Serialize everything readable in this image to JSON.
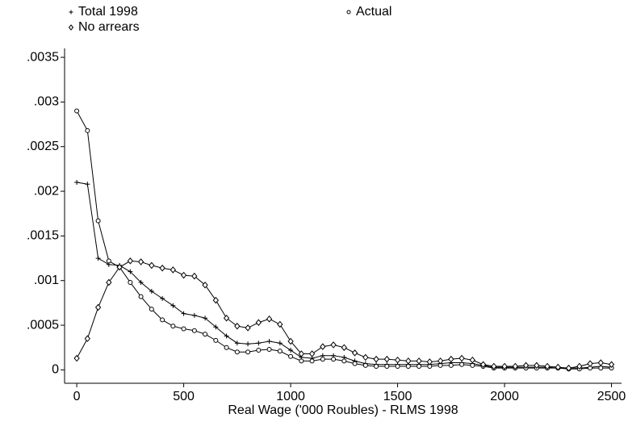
{
  "chart_data": {
    "type": "line",
    "xlabel": "Real Wage ('000 Roubles) - RLMS 1998",
    "x": [
      0,
      50,
      100,
      150,
      200,
      250,
      300,
      350,
      400,
      450,
      500,
      550,
      600,
      650,
      700,
      750,
      800,
      850,
      900,
      950,
      1000,
      1050,
      1100,
      1150,
      1200,
      1250,
      1300,
      1350,
      1400,
      1450,
      1500,
      1550,
      1600,
      1650,
      1700,
      1750,
      1800,
      1850,
      1900,
      1950,
      2000,
      2050,
      2100,
      2150,
      2200,
      2250,
      2300,
      2350,
      2400,
      2450,
      2500
    ],
    "series": [
      {
        "name": "Total 1998",
        "color": "#000000",
        "marker": "plus",
        "values": [
          0.0021,
          0.00208,
          0.00125,
          0.00118,
          0.00117,
          0.0011,
          0.00098,
          0.00088,
          0.0008,
          0.00072,
          0.00063,
          0.00061,
          0.00058,
          0.00048,
          0.00038,
          0.0003,
          0.00029,
          0.0003,
          0.00032,
          0.0003,
          0.00022,
          0.00014,
          0.00013,
          0.00016,
          0.00016,
          0.00014,
          0.0001,
          7e-05,
          6e-05,
          6e-05,
          6e-05,
          6e-05,
          6e-05,
          6e-05,
          7e-05,
          8e-05,
          8e-05,
          7e-05,
          5e-05,
          3e-05,
          3e-05,
          3e-05,
          3e-05,
          3e-05,
          3e-05,
          2e-05,
          2e-05,
          2e-05,
          3e-05,
          4e-05,
          3e-05
        ]
      },
      {
        "name": "Actual",
        "color": "#000000",
        "marker": "circle",
        "values": [
          0.0029,
          0.00268,
          0.00167,
          0.00122,
          0.00115,
          0.00098,
          0.00082,
          0.00068,
          0.00056,
          0.00049,
          0.00046,
          0.00044,
          0.0004,
          0.00033,
          0.00025,
          0.0002,
          0.0002,
          0.00022,
          0.00023,
          0.00021,
          0.00015,
          0.0001,
          0.0001,
          0.00012,
          0.00012,
          0.0001,
          7e-05,
          5e-05,
          4e-05,
          4e-05,
          4e-05,
          4e-05,
          4e-05,
          4e-05,
          5e-05,
          5e-05,
          6e-05,
          5e-05,
          4e-05,
          2e-05,
          2e-05,
          2e-05,
          2e-05,
          2e-05,
          2e-05,
          2e-05,
          1e-05,
          1e-05,
          2e-05,
          2e-05,
          2e-05
        ]
      },
      {
        "name": "No arrears",
        "color": "#000000",
        "marker": "diamond",
        "values": [
          0.00013,
          0.00035,
          0.0007,
          0.00098,
          0.00115,
          0.00122,
          0.00121,
          0.00117,
          0.00114,
          0.00112,
          0.00106,
          0.00105,
          0.00095,
          0.00078,
          0.00058,
          0.00049,
          0.00047,
          0.00053,
          0.00057,
          0.00051,
          0.00032,
          0.00018,
          0.00018,
          0.00026,
          0.00028,
          0.00025,
          0.00019,
          0.00014,
          0.00012,
          0.00012,
          0.00011,
          0.0001,
          0.0001,
          9e-05,
          0.0001,
          0.00012,
          0.00013,
          0.00011,
          6e-05,
          4e-05,
          4e-05,
          4e-05,
          5e-05,
          5e-05,
          4e-05,
          3e-05,
          2e-05,
          4e-05,
          7e-05,
          8e-05,
          6e-05
        ]
      }
    ],
    "xlim": [
      -57,
      2547
    ],
    "xticks": [
      0,
      500,
      1000,
      1500,
      2000,
      2500
    ],
    "ylim": [
      -0.00015,
      0.0036
    ],
    "yticks": [
      0,
      {
        "value": 0.0005,
        "label": ".0005"
      },
      {
        "value": 0.001,
        "label": ".001"
      },
      {
        "value": 0.0015,
        "label": ".0015"
      },
      {
        "value": 0.002,
        "label": ".002"
      },
      {
        "value": 0.0025,
        "label": ".0025"
      },
      {
        "value": 0.003,
        "label": ".003"
      },
      {
        "value": 0.0035,
        "label": ".0035"
      }
    ],
    "grid": false
  }
}
